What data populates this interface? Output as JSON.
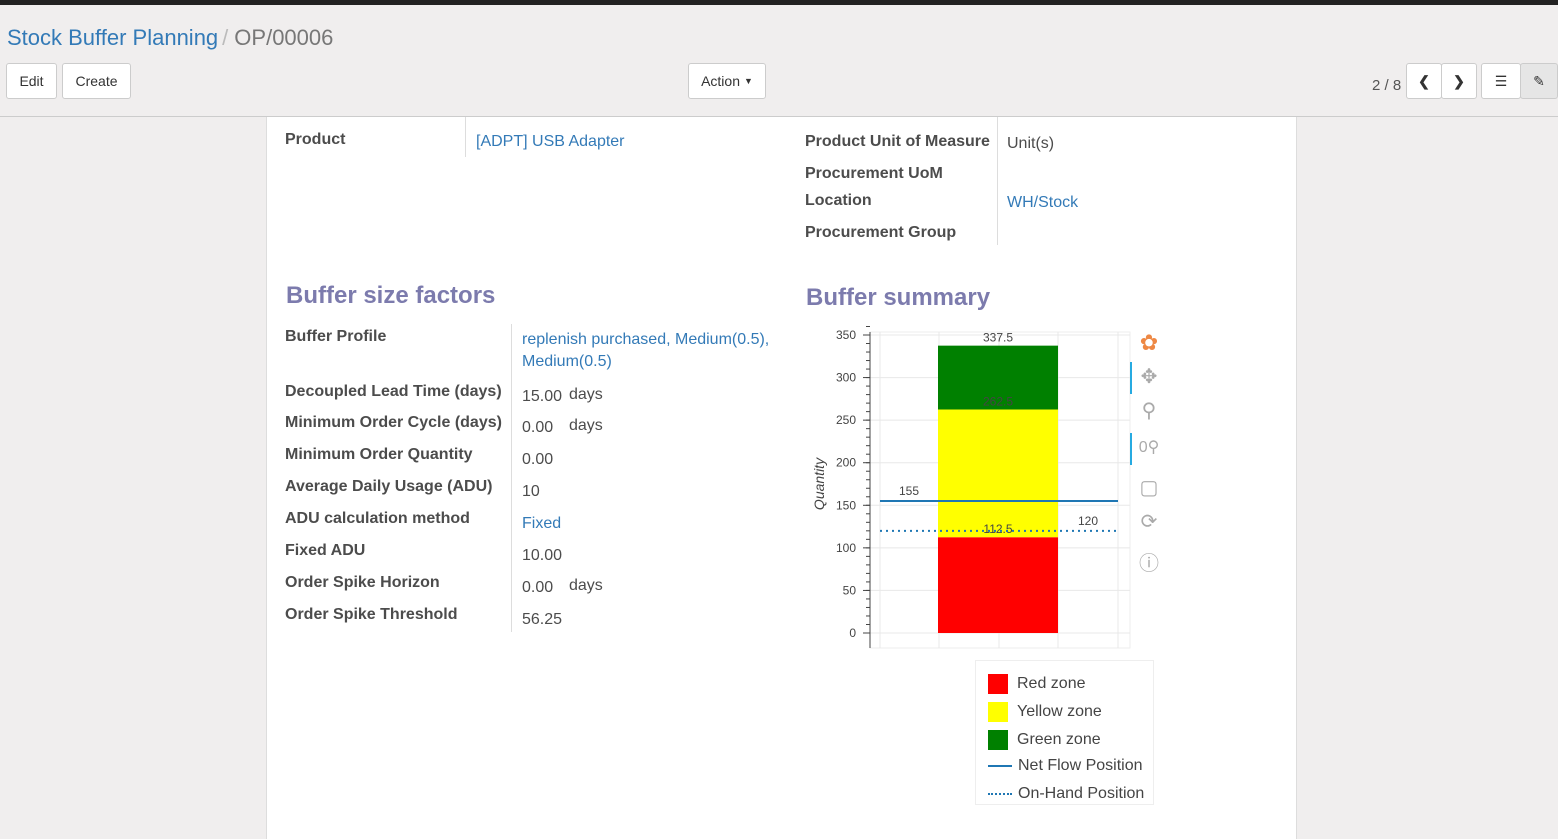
{
  "breadcrumb": {
    "parent": "Stock Buffer Planning",
    "current": "OP/00006"
  },
  "buttons": {
    "edit": "Edit",
    "create": "Create",
    "action": "Action"
  },
  "pager": {
    "value": "2 / 8"
  },
  "fields_left": [
    {
      "label": "Product",
      "value": "[ADPT] USB Adapter",
      "link": true
    }
  ],
  "fields_right": [
    {
      "label": "Product Unit of Measure",
      "value": "Unit(s)",
      "link": false
    },
    {
      "label": "Procurement UoM",
      "value": "",
      "link": false
    },
    {
      "label": "Location",
      "value": "WH/Stock",
      "link": true
    },
    {
      "label": "Procurement Group",
      "value": "",
      "link": false
    }
  ],
  "buffer_size": {
    "title": "Buffer size factors",
    "rows": [
      {
        "label": "Buffer Profile",
        "value": "replenish purchased, Medium(0.5),",
        "value2": "Medium(0.5)",
        "unit": ""
      },
      {
        "label": "Decoupled Lead Time (days)",
        "value": "15.00",
        "unit": "days"
      },
      {
        "label": "Minimum Order Cycle (days)",
        "value": "0.00",
        "unit": "days"
      },
      {
        "label": "Minimum Order Quantity",
        "value": "0.00",
        "unit": ""
      },
      {
        "label": "Average Daily Usage (ADU)",
        "value": "10",
        "unit": ""
      },
      {
        "label": "ADU calculation method",
        "value": "Fixed",
        "unit": ""
      },
      {
        "label": "Fixed ADU",
        "value": "10.00",
        "unit": ""
      },
      {
        "label": "Order Spike Horizon",
        "value": "0.00",
        "unit": "days"
      },
      {
        "label": "Order Spike Threshold",
        "value": "56.25",
        "unit": ""
      }
    ]
  },
  "summary": {
    "title": "Buffer summary"
  },
  "chart_data": {
    "type": "bar",
    "stacked": true,
    "ylabel": "Quantity",
    "ylim": [
      0,
      350
    ],
    "yticks": [
      0,
      50,
      100,
      150,
      200,
      250,
      300,
      350
    ],
    "grid": true,
    "segments": [
      {
        "name": "Red zone",
        "from": 0,
        "to": 112.5,
        "color": "#ff0000",
        "label": "112.5"
      },
      {
        "name": "Yellow zone",
        "from": 112.5,
        "to": 262.5,
        "color": "#ffff00",
        "label": "262.5"
      },
      {
        "name": "Green zone",
        "from": 262.5,
        "to": 337.5,
        "color": "#008000",
        "label": "337.5"
      }
    ],
    "lines": [
      {
        "name": "Net Flow Position",
        "value": 155,
        "style": "solid",
        "color": "#1f77b4",
        "label": "155"
      },
      {
        "name": "On-Hand Position",
        "value": 120,
        "style": "dotted",
        "color": "#1f77b4",
        "label": "120"
      }
    ],
    "legend_position": "bottom"
  },
  "toolbar_icons": [
    "bokeh-logo-icon",
    "pan-icon",
    "box-zoom-icon",
    "wheel-zoom-icon",
    "save-icon",
    "reset-icon",
    "help-icon"
  ]
}
